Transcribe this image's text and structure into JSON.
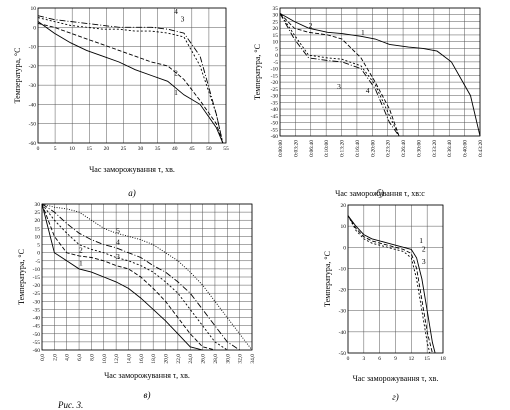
{
  "caption_fragment": "Рис. 3.",
  "chart_data": [
    {
      "type": "line",
      "subplot_label": "а)",
      "xlabel": "Час заморожування τ, хв.",
      "ylabel": "Температура, °С",
      "xlim": [
        0,
        58
      ],
      "ylim": [
        -60,
        10
      ],
      "xticks": [
        0,
        5,
        10,
        15,
        20,
        25,
        30,
        35,
        40,
        45,
        50,
        55
      ],
      "yticks": [
        10,
        0,
        -10,
        -20,
        -30,
        -40,
        -50,
        -60
      ],
      "series": [
        {
          "name": "1",
          "label_at": [
            42,
            -35
          ],
          "x": [
            0,
            5,
            10,
            15,
            20,
            25,
            30,
            35,
            40,
            45,
            50,
            55,
            57
          ],
          "y": [
            3,
            -3,
            -8,
            -12,
            -15,
            -18,
            -22,
            -25,
            -28,
            -35,
            -40,
            -52,
            -60
          ]
        },
        {
          "name": "2",
          "label_at": [
            42,
            -25
          ],
          "x": [
            0,
            5,
            10,
            15,
            20,
            25,
            30,
            35,
            40,
            45,
            50,
            55,
            57
          ],
          "y": [
            2,
            0,
            -3,
            -6,
            -9,
            -12,
            -15,
            -18,
            -20,
            -27,
            -38,
            -50,
            -60
          ]
        },
        {
          "name": "3",
          "label_at": [
            44,
            3
          ],
          "x": [
            0,
            5,
            10,
            15,
            20,
            25,
            30,
            35,
            40,
            45,
            50,
            55,
            57
          ],
          "y": [
            5,
            3,
            1,
            0,
            -1,
            -1,
            -2,
            -2,
            -3,
            -5,
            -20,
            -45,
            -60
          ]
        },
        {
          "name": "4",
          "label_at": [
            42,
            7
          ],
          "x": [
            0,
            5,
            10,
            15,
            20,
            25,
            30,
            35,
            40,
            45,
            50,
            55,
            57
          ],
          "y": [
            6,
            4,
            3,
            2,
            1,
            0,
            0,
            0,
            -1,
            -3,
            -15,
            -45,
            -60
          ]
        }
      ]
    },
    {
      "type": "line",
      "subplot_label": "б)",
      "xlabel": "Час заморожування τ, хв:с",
      "ylabel": "Температура, °С",
      "xlim": [
        0,
        42
      ],
      "ylim": [
        -60,
        35
      ],
      "xticks": [
        "0:00:00",
        "0:03:20",
        "0:06:40",
        "0:10:00",
        "0:13:20",
        "0:16:40",
        "0:20:00",
        "0:23:20",
        "0:26:40",
        "0:30:00",
        "0:33:20",
        "0:36:40",
        "0:40:00",
        "0:43:20"
      ],
      "yticks": [
        35,
        30,
        25,
        20,
        15,
        10,
        5,
        0,
        -5,
        -10,
        -15,
        -20,
        -25,
        -30,
        -35,
        -40,
        -45,
        -50,
        -55,
        -60
      ],
      "series": [
        {
          "name": "1",
          "label_at": [
            17,
            15
          ],
          "x": [
            0,
            3,
            6,
            10,
            13,
            17,
            20,
            23,
            27,
            30,
            33,
            36,
            40,
            42
          ],
          "y": [
            31,
            25,
            20,
            17,
            16,
            14,
            12,
            8,
            6,
            5,
            3,
            -5,
            -30,
            -60
          ]
        },
        {
          "name": "2",
          "label_at": [
            6,
            20
          ],
          "x": [
            0,
            3,
            6,
            10,
            13,
            17,
            20,
            23,
            25
          ],
          "y": [
            31,
            20,
            17,
            15,
            12,
            -2,
            -20,
            -40,
            -60
          ]
        },
        {
          "name": "3",
          "label_at": [
            12,
            -25
          ],
          "x": [
            0,
            3,
            6,
            10,
            13,
            17,
            20,
            23,
            25
          ],
          "y": [
            31,
            15,
            0,
            -2,
            -3,
            -8,
            -22,
            -45,
            -60
          ]
        },
        {
          "name": "4",
          "label_at": [
            18,
            -28
          ],
          "x": [
            0,
            3,
            6,
            10,
            13,
            17,
            20,
            23,
            25
          ],
          "y": [
            31,
            12,
            -2,
            -4,
            -5,
            -10,
            -25,
            -50,
            -60
          ]
        }
      ]
    },
    {
      "type": "line",
      "subplot_label": "в)",
      "xlabel": "Час заморожування τ, хв.",
      "ylabel": "Температура, °С",
      "xlim": [
        0,
        34
      ],
      "ylim": [
        -60,
        30
      ],
      "xticks": [
        "0,0",
        "2,0",
        "4,0",
        "6,0",
        "8,0",
        "10,0",
        "12,0",
        "14,0",
        "16,0",
        "18,0",
        "20,0",
        "22,0",
        "24,0",
        "26,0",
        "28,0",
        "30,0",
        "32,0",
        "34,0"
      ],
      "yticks": [
        30,
        25,
        20,
        15,
        10,
        5,
        0,
        -5,
        -10,
        -15,
        -20,
        -25,
        -30,
        -35,
        -40,
        -45,
        -50,
        -55,
        -60
      ],
      "series": [
        {
          "name": "1",
          "label_at": [
            6,
            -8
          ],
          "x": [
            0,
            2,
            4,
            6,
            8,
            10,
            12,
            14,
            16,
            18,
            20,
            22,
            24,
            26
          ],
          "y": [
            30,
            0,
            -5,
            -10,
            -12,
            -15,
            -18,
            -22,
            -28,
            -35,
            -42,
            -50,
            -58,
            -60
          ]
        },
        {
          "name": "2",
          "label_at": [
            6,
            0
          ],
          "x": [
            0,
            2,
            4,
            6,
            8,
            10,
            12,
            14,
            16,
            18,
            20,
            22,
            24,
            26,
            28
          ],
          "y": [
            30,
            10,
            0,
            -2,
            -3,
            -5,
            -8,
            -10,
            -15,
            -22,
            -30,
            -40,
            -50,
            -58,
            -60
          ]
        },
        {
          "name": "3",
          "label_at": [
            12,
            -4
          ],
          "x": [
            0,
            2,
            4,
            6,
            8,
            10,
            12,
            14,
            16,
            18,
            20,
            22,
            24,
            26,
            28,
            30
          ],
          "y": [
            30,
            20,
            12,
            5,
            2,
            0,
            -3,
            -5,
            -8,
            -12,
            -18,
            -25,
            -35,
            -45,
            -55,
            -60
          ]
        },
        {
          "name": "4",
          "label_at": [
            12,
            5
          ],
          "x": [
            0,
            2,
            4,
            6,
            8,
            10,
            12,
            14,
            16,
            18,
            20,
            22,
            24,
            26,
            28,
            30,
            32
          ],
          "y": [
            30,
            25,
            18,
            12,
            8,
            5,
            3,
            0,
            -3,
            -8,
            -12,
            -18,
            -25,
            -35,
            -45,
            -55,
            -60
          ]
        },
        {
          "name": "5",
          "label_at": [
            12,
            12
          ],
          "x": [
            0,
            2,
            4,
            6,
            8,
            10,
            12,
            14,
            16,
            18,
            20,
            22,
            24,
            26,
            28,
            30,
            32,
            34
          ],
          "y": [
            30,
            28,
            27,
            25,
            20,
            15,
            12,
            10,
            8,
            5,
            0,
            -5,
            -12,
            -20,
            -30,
            -40,
            -50,
            -60
          ]
        }
      ]
    },
    {
      "type": "line",
      "subplot_label": "г)",
      "xlabel": "Час заморожування τ, хв.",
      "ylabel": "Температура, °С",
      "xlim": [
        0,
        18
      ],
      "ylim": [
        -50,
        20
      ],
      "xticks": [
        0,
        3,
        6,
        9,
        12,
        15,
        18
      ],
      "yticks": [
        20,
        10,
        0,
        -10,
        -20,
        -30,
        -40,
        -50
      ],
      "series": [
        {
          "name": "1",
          "label_at": [
            13.5,
            2
          ],
          "x": [
            0,
            1.5,
            3,
            4.5,
            6,
            7.5,
            9,
            10.5,
            12,
            13,
            14,
            15,
            16,
            16.5
          ],
          "y": [
            15,
            10,
            6,
            4,
            3,
            2,
            1,
            0,
            -1,
            -5,
            -15,
            -30,
            -45,
            -50
          ]
        },
        {
          "name": "2",
          "label_at": [
            14,
            -2
          ],
          "x": [
            0,
            1.5,
            3,
            4.5,
            6,
            7.5,
            9,
            10.5,
            12,
            13,
            14,
            15,
            16
          ],
          "y": [
            15,
            9,
            5,
            3,
            2,
            1,
            0,
            -1,
            -3,
            -10,
            -25,
            -40,
            -50
          ]
        },
        {
          "name": "3",
          "label_at": [
            14,
            -8
          ],
          "x": [
            0,
            1.5,
            3,
            4.5,
            6,
            7.5,
            9,
            10.5,
            12,
            13,
            14,
            15,
            15.5
          ],
          "y": [
            15,
            8,
            4,
            2,
            1,
            0,
            -1,
            -2,
            -5,
            -15,
            -30,
            -45,
            -50
          ]
        }
      ]
    }
  ]
}
